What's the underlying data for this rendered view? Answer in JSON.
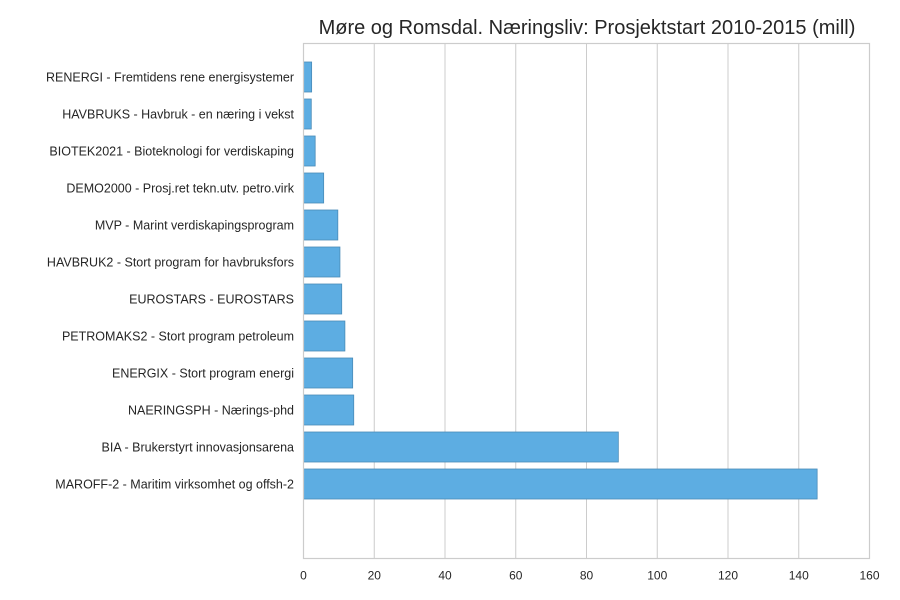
{
  "chart_data": {
    "type": "bar",
    "orientation": "horizontal",
    "title": "Møre og Romsdal. Næringsliv: Prosjektstart 2010-2015 (mill)",
    "xlabel": "",
    "ylabel": "",
    "xlim": [
      0,
      160
    ],
    "xticks": [
      "0",
      "20",
      "40",
      "60",
      "80",
      "100",
      "120",
      "140",
      "160"
    ],
    "grid": true,
    "bar_color": "#5DADE2",
    "categories": [
      "RENERGI - Fremtidens rene energisystemer",
      "HAVBRUKS - Havbruk - en næring i vekst",
      "BIOTEK2021 - Bioteknologi for verdiskaping",
      "DEMO2000 - Prosj.ret tekn.utv. petro.virk",
      "MVP - Marint verdiskapingsprogram",
      "HAVBRUK2 - Stort program for havbruksfors",
      "EUROSTARS - EUROSTARS",
      "PETROMAKS2 - Stort program petroleum",
      "ENERGIX - Stort program energi",
      "NAERINGSPH - Nærings-phd",
      "BIA - Brukerstyrt innovasjonsarena",
      "MAROFF-2 - Maritim virksomhet og offsh-2"
    ],
    "values": [
      2.3,
      2.2,
      3.3,
      5.7,
      9.7,
      10.3,
      10.8,
      11.7,
      13.9,
      14.2,
      89.0,
      145.2
    ]
  }
}
